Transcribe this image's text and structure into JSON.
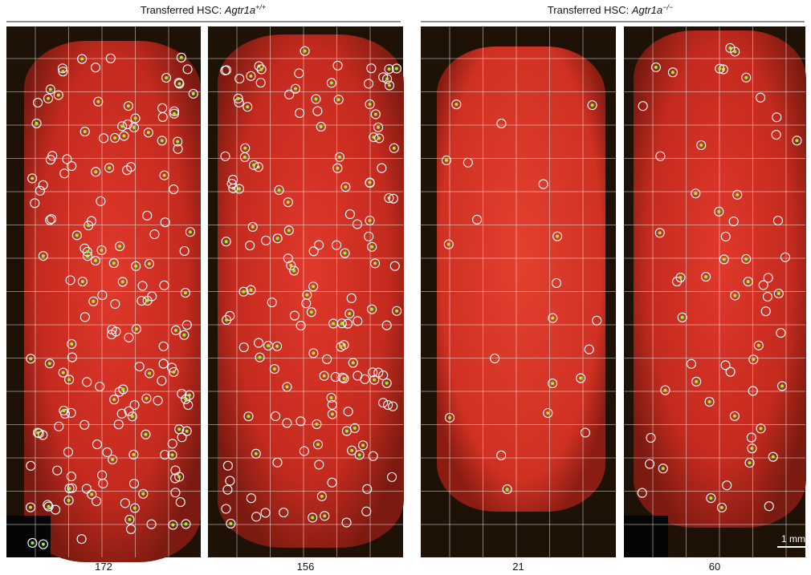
{
  "groups": [
    {
      "title": {
        "prefix": "Transferred HSC: ",
        "gene": "Agtr1a",
        "genotype": "+/+"
      }
    },
    {
      "title": {
        "prefix": "Transferred HSC: ",
        "gene": "Agtr1a",
        "genotype": "−/−"
      }
    }
  ],
  "panels": [
    {
      "count": 172
    },
    {
      "count": 156
    },
    {
      "count": 21
    },
    {
      "count": 60
    }
  ],
  "scale_bar": "1 mm"
}
